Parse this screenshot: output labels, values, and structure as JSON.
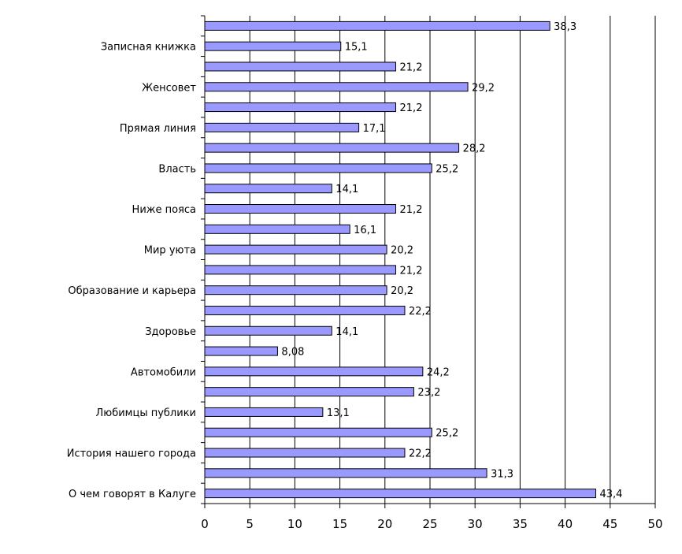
{
  "chart_data": {
    "type": "bar",
    "orientation": "horizontal",
    "categories": [
      "О чем говорят в Калуге",
      "",
      "История нашего города",
      "",
      "Любимцы публики",
      "",
      "Автомобили",
      "",
      "Здоровье",
      "",
      "Образование и карьера",
      "",
      "Мир уюта",
      "",
      "Ниже пояса",
      "",
      "Власть",
      "",
      "Прямая линия",
      "",
      "Женсовет",
      "",
      "Записная книжка",
      ""
    ],
    "values": [
      43.4,
      31.3,
      22.2,
      25.2,
      13.1,
      23.2,
      24.2,
      8.08,
      14.1,
      22.2,
      20.2,
      21.2,
      20.2,
      16.1,
      21.2,
      14.1,
      25.2,
      28.2,
      17.1,
      21.2,
      29.2,
      21.2,
      15.1,
      38.3
    ],
    "value_labels": [
      "43,4",
      "31,3",
      "22,2",
      "25,2",
      "13,1",
      "23,2",
      "24,2",
      "8,08",
      "14,1",
      "22,2",
      "20,2",
      "21,2",
      "20,2",
      "16,1",
      "21,2",
      "14,1",
      "25,2",
      "28,2",
      "17,1",
      "21,2",
      "29,2",
      "21,2",
      "15,1",
      "38,3"
    ],
    "x_ticks": [
      "0",
      "5",
      "10",
      "15",
      "20",
      "25",
      "30",
      "35",
      "40",
      "45",
      "50"
    ],
    "xlim": [
      0,
      50
    ],
    "title": "",
    "xlabel": "",
    "ylabel": "",
    "grid": "vertical major gridlines",
    "bar_color": "#9999ff",
    "bar_edge_color": "#000000"
  }
}
